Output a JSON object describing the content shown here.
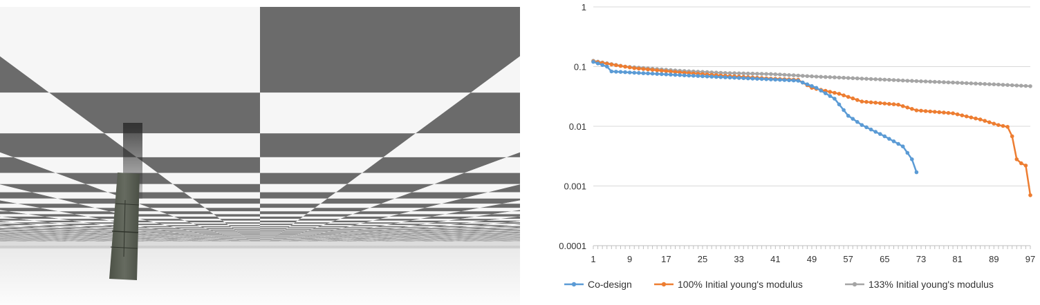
{
  "scene": {
    "description_icon": "checkerboard-ceiling-render",
    "colors": {
      "dark": "#6b6b6b",
      "light": "#f6f6f6",
      "floor_top": "#ececec",
      "floor_bottom": "#fbfbfb",
      "beam": "#5a5f54"
    }
  },
  "chart_data": {
    "type": "line",
    "title": "",
    "xlabel": "",
    "ylabel": "",
    "yscale": "log",
    "ylim": [
      0.0001,
      1
    ],
    "xlim": [
      1,
      97
    ],
    "y_tick_labels": [
      "1",
      "0.1",
      "0.01",
      "0.001",
      "0.0001"
    ],
    "y_tick_values": [
      1,
      0.1,
      0.01,
      0.001,
      0.0001
    ],
    "x_tick_labels": [
      "1",
      "9",
      "17",
      "25",
      "33",
      "41",
      "49",
      "57",
      "65",
      "73",
      "81",
      "89",
      "97"
    ],
    "x_tick_values": [
      1,
      9,
      17,
      25,
      33,
      41,
      49,
      57,
      65,
      73,
      81,
      89,
      97
    ],
    "grid": "horizontal",
    "legend_position": "bottom",
    "series": [
      {
        "name": "Co-design",
        "color": "#5b9bd5",
        "anchors": [
          [
            1,
            0.12
          ],
          [
            4,
            0.1
          ],
          [
            5,
            0.083
          ],
          [
            10,
            0.079
          ],
          [
            20,
            0.072
          ],
          [
            30,
            0.066
          ],
          [
            40,
            0.061
          ],
          [
            46,
            0.058
          ],
          [
            50,
            0.044
          ],
          [
            54,
            0.029
          ],
          [
            57,
            0.015
          ],
          [
            60,
            0.0105
          ],
          [
            65,
            0.0068
          ],
          [
            69,
            0.0046
          ],
          [
            71,
            0.0028
          ],
          [
            72,
            0.0017
          ]
        ]
      },
      {
        "name": "100% Initial young's modulus",
        "color": "#ed7d31",
        "anchors": [
          [
            1,
            0.122
          ],
          [
            10,
            0.094
          ],
          [
            20,
            0.08
          ],
          [
            30,
            0.07
          ],
          [
            40,
            0.063
          ],
          [
            46,
            0.06
          ],
          [
            49,
            0.044
          ],
          [
            55,
            0.035
          ],
          [
            60,
            0.026
          ],
          [
            68,
            0.023
          ],
          [
            72,
            0.0185
          ],
          [
            80,
            0.0165
          ],
          [
            86,
            0.013
          ],
          [
            90,
            0.0105
          ],
          [
            92,
            0.0098
          ],
          [
            93,
            0.0068
          ],
          [
            94,
            0.0028
          ],
          [
            95,
            0.0024
          ],
          [
            96,
            0.0022
          ],
          [
            97,
            0.0007
          ]
        ]
      },
      {
        "name": "133% Initial young's modulus",
        "color": "#a5a5a5",
        "anchors": [
          [
            1,
            0.125
          ],
          [
            8,
            0.1
          ],
          [
            20,
            0.085
          ],
          [
            30,
            0.078
          ],
          [
            40,
            0.075
          ],
          [
            50,
            0.068
          ],
          [
            60,
            0.063
          ],
          [
            70,
            0.058
          ],
          [
            80,
            0.054
          ],
          [
            90,
            0.05
          ],
          [
            97,
            0.047
          ]
        ]
      }
    ]
  }
}
